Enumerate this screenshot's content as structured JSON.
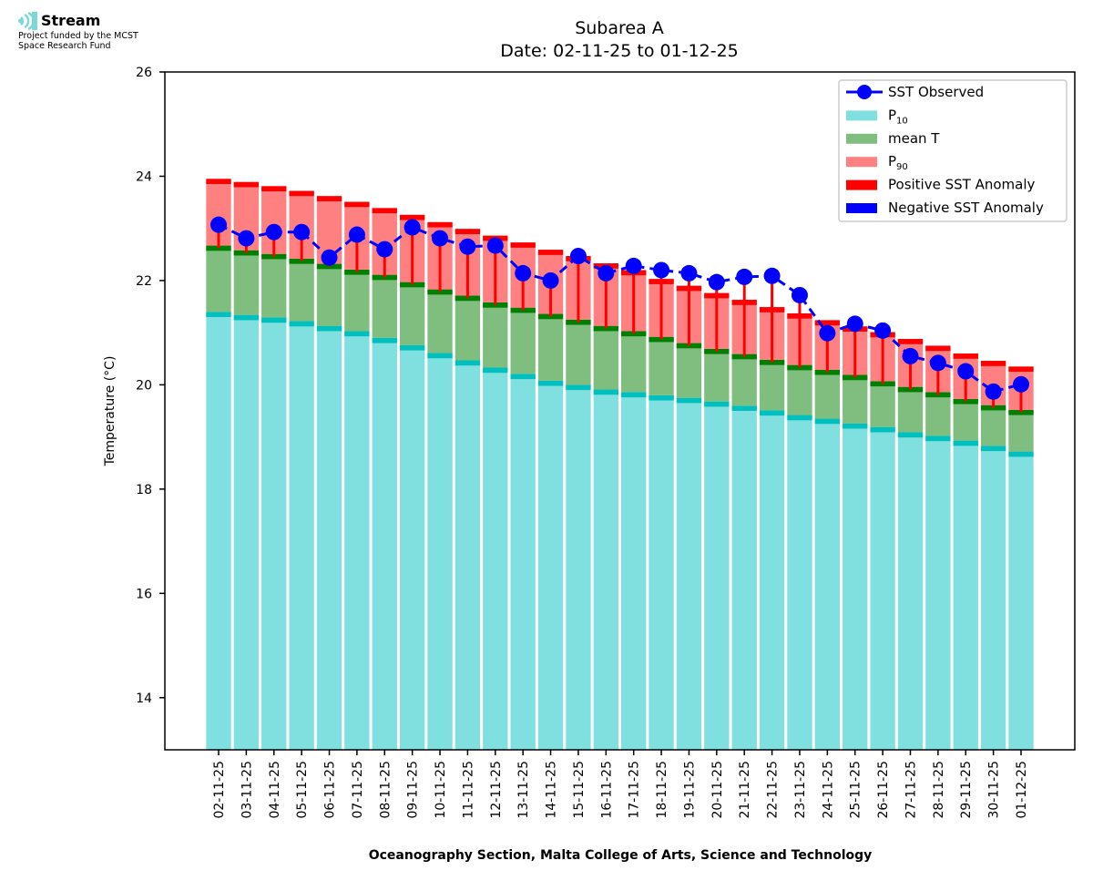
{
  "logo": {
    "name": "Stream",
    "icon": "stream-waves-icon",
    "funding_line1": "Project funded by the MCST",
    "funding_line2": "Space Research Fund"
  },
  "chart_data": {
    "type": "bar",
    "title": "Subarea A",
    "subtitle": "Date: 02-11-25 to 01-12-25",
    "xlabel": "Oceanography Section, Malta College of Arts, Science and Technology",
    "ylabel": "Temperature (°C)",
    "ylim": [
      13,
      26
    ],
    "yticks": [
      14,
      16,
      18,
      20,
      22,
      24,
      26
    ],
    "grid": false,
    "legend_position": "top-right",
    "legend": [
      {
        "label": "SST Observed",
        "sub": "",
        "kind": "line",
        "color": "#0000ff"
      },
      {
        "label": "P",
        "sub": "10",
        "kind": "patch",
        "color": "#80dfdf"
      },
      {
        "label": "mean T",
        "sub": "",
        "kind": "patch",
        "color": "#80be80"
      },
      {
        "label": "P",
        "sub": "90",
        "kind": "patch",
        "color": "#ff8080"
      },
      {
        "label": "Positive SST Anomaly",
        "sub": "",
        "kind": "patch",
        "color": "#ff0000"
      },
      {
        "label": "Negative SST Anomaly",
        "sub": "",
        "kind": "patch",
        "color": "#0000ff"
      }
    ],
    "colors": {
      "p10": "#80dfdf",
      "p10_cap": "#00bfbf",
      "mean": "#80be80",
      "mean_cap": "#008000",
      "p90": "#ff8080",
      "p90_cap": "#ff0000",
      "sst": "#0000ff",
      "anomaly_positive": "#ff0000",
      "anomaly_negative": "#0000ff"
    },
    "categories": [
      "02-11-25",
      "03-11-25",
      "04-11-25",
      "05-11-25",
      "06-11-25",
      "07-11-25",
      "08-11-25",
      "09-11-25",
      "10-11-25",
      "11-11-25",
      "12-11-25",
      "13-11-25",
      "14-11-25",
      "15-11-25",
      "16-11-25",
      "17-11-25",
      "18-11-25",
      "19-11-25",
      "20-11-25",
      "21-11-25",
      "22-11-25",
      "23-11-25",
      "24-11-25",
      "25-11-25",
      "26-11-25",
      "27-11-25",
      "28-11-25",
      "29-11-25",
      "30-11-25",
      "01-12-25"
    ],
    "series": [
      {
        "name": "P10",
        "values": [
          21.4,
          21.34,
          21.29,
          21.22,
          21.13,
          21.03,
          20.9,
          20.76,
          20.61,
          20.47,
          20.33,
          20.21,
          20.08,
          20.0,
          19.91,
          19.86,
          19.8,
          19.75,
          19.68,
          19.6,
          19.51,
          19.42,
          19.35,
          19.26,
          19.19,
          19.09,
          19.02,
          18.93,
          18.83,
          18.72
        ]
      },
      {
        "name": "mean T",
        "values": [
          22.67,
          22.58,
          22.51,
          22.42,
          22.32,
          22.21,
          22.11,
          21.97,
          21.83,
          21.71,
          21.58,
          21.48,
          21.36,
          21.25,
          21.13,
          21.03,
          20.92,
          20.8,
          20.69,
          20.59,
          20.48,
          20.38,
          20.29,
          20.19,
          20.07,
          19.96,
          19.86,
          19.73,
          19.61,
          19.52
        ]
      },
      {
        "name": "P90",
        "values": [
          23.95,
          23.89,
          23.81,
          23.72,
          23.62,
          23.51,
          23.39,
          23.26,
          23.12,
          22.99,
          22.86,
          22.73,
          22.59,
          22.47,
          22.33,
          22.2,
          22.03,
          21.9,
          21.76,
          21.63,
          21.49,
          21.37,
          21.24,
          21.12,
          21.01,
          20.88,
          20.75,
          20.6,
          20.46,
          20.35
        ]
      },
      {
        "name": "SST Observed",
        "values": [
          23.07,
          22.81,
          22.93,
          22.93,
          22.44,
          22.88,
          22.6,
          23.02,
          22.81,
          22.65,
          22.67,
          22.14,
          22.0,
          22.47,
          22.14,
          22.28,
          22.2,
          22.14,
          21.97,
          22.07,
          22.09,
          21.72,
          20.99,
          21.17,
          21.04,
          20.55,
          20.42,
          20.26,
          19.87,
          20.01
        ]
      }
    ]
  }
}
